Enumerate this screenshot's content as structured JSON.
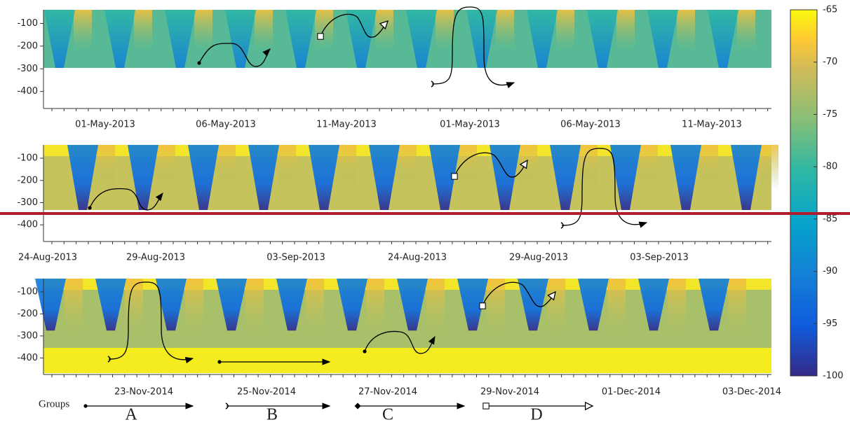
{
  "panels": [
    {
      "ylim": [
        -40,
        -475
      ],
      "yticks": [
        -100,
        -200,
        -300,
        -400
      ],
      "xticks": [
        "01-May-2013",
        "06-May-2013",
        "11-May-2013",
        "01-May-2013",
        "06-May-2013",
        "11-May-2013"
      ]
    },
    {
      "ylim": [
        -40,
        -475
      ],
      "yticks": [
        -100,
        -200,
        -300,
        -400
      ],
      "xticks": [
        "24-Aug-2013",
        "29-Aug-2013",
        "03-Sep-2013",
        "24-Aug-2013",
        "29-Aug-2013",
        "03-Sep-2013"
      ]
    },
    {
      "ylim": [
        -40,
        -475
      ],
      "yticks": [
        -100,
        -200,
        -300,
        -400
      ],
      "xticks": [
        "23-Nov-2014",
        "25-Nov-2014",
        "27-Nov-2014",
        "29-Nov-2014",
        "01-Dec-2014",
        "03-Dec-2014"
      ]
    }
  ],
  "colorbar": {
    "lim": [
      -100,
      -65
    ],
    "ticks": [
      -65,
      -70,
      -75,
      -80,
      -85,
      -90,
      -95,
      -100
    ]
  },
  "legend": {
    "title": "Groups",
    "groups": [
      "A",
      "B",
      "C",
      "D"
    ]
  }
}
